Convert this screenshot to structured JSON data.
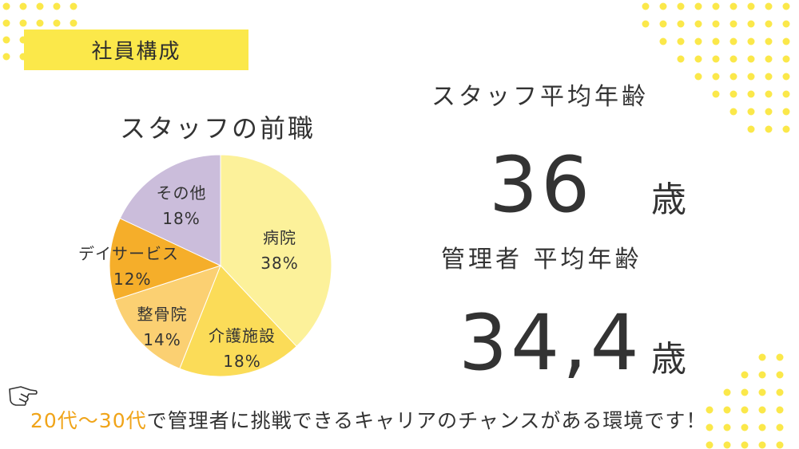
{
  "slide": {
    "title": "社員構成",
    "colors": {
      "accent": "#fbe84a",
      "highlight": "#f0a419",
      "text": "#333333"
    }
  },
  "pie": {
    "title": "スタッフの前職",
    "slices": [
      {
        "name": "病院",
        "percent": "38%",
        "value": 38,
        "color": "#fcf19a"
      },
      {
        "name": "介護施設",
        "percent": "18%",
        "value": 18,
        "color": "#fbdc58"
      },
      {
        "name": "整骨院",
        "percent": "14%",
        "value": 14,
        "color": "#fbd072"
      },
      {
        "name": "デイサービス",
        "percent": "12%",
        "value": 12,
        "color": "#f5ae2a"
      },
      {
        "name": "その他",
        "percent": "18%",
        "value": 18,
        "color": "#cbbddb"
      }
    ]
  },
  "staff_age": {
    "label": "スタッフ平均年齢",
    "value": "36",
    "unit": "歳"
  },
  "manager_age": {
    "label": "管理者 平均年齢",
    "value": "34,4",
    "unit": "歳"
  },
  "footer": {
    "highlight": "20代〜30代",
    "text": "で管理者に挑戦できるキャリアのチャンスがある環境です！"
  },
  "icons": [
    "pointing-hand-icon"
  ]
}
